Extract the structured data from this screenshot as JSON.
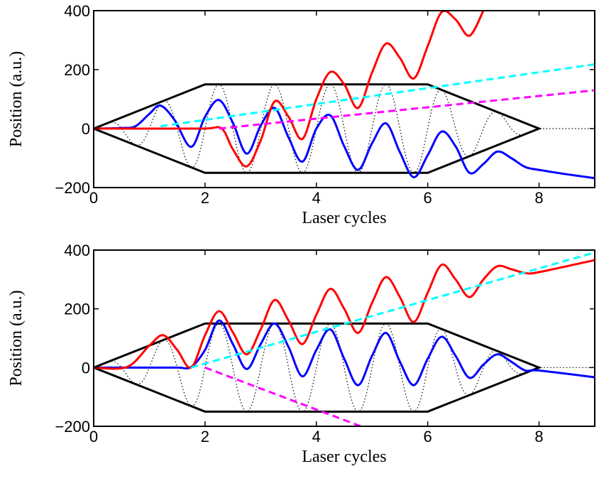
{
  "chart_data": [
    {
      "type": "line",
      "panel": "top",
      "xlabel": "Laser cycles",
      "ylabel": "Position (a.u.)",
      "xlim": [
        0,
        9
      ],
      "ylim": [
        -200,
        400
      ],
      "xticks": [
        0,
        2,
        4,
        6,
        8
      ],
      "xtick_labels": [
        "0",
        "2",
        "4",
        "6",
        "8"
      ],
      "yticks": [
        -200,
        0,
        200,
        400
      ],
      "ytick_labels": [
        "−200",
        "0",
        "200",
        "400"
      ],
      "grid": false,
      "legend": "none",
      "envelope": {
        "color": "#000000",
        "x": [
          0,
          2,
          6,
          8,
          6,
          2,
          0
        ],
        "y": [
          0,
          150,
          150,
          0,
          -150,
          -150,
          0
        ]
      },
      "field": {
        "color": "#000000",
        "style": "dotted",
        "amplitude_envelope": true,
        "zero_after": 8,
        "x_end": 9
      },
      "series": [
        {
          "color": "#0000ff",
          "style": "solid",
          "x": [
            0,
            0.5,
            0.75,
            1,
            1.2,
            1.45,
            1.75,
            2,
            2.25,
            2.5,
            2.75,
            3,
            3.25,
            3.5,
            3.75,
            4,
            4.25,
            4.5,
            4.75,
            5,
            5.25,
            5.5,
            5.75,
            6,
            6.25,
            6.5,
            6.75,
            7,
            7.25,
            7.5,
            7.75,
            8,
            8.5,
            9
          ],
          "y": [
            0,
            2,
            8,
            50,
            78,
            30,
            -62,
            40,
            97,
            20,
            -85,
            10,
            70,
            -30,
            -112,
            0,
            45,
            -60,
            -140,
            -50,
            18,
            -80,
            -165,
            -90,
            -10,
            -60,
            -150,
            -120,
            -78,
            -100,
            -130,
            -140,
            -155,
            -168
          ]
        },
        {
          "color": "#ff0000",
          "style": "solid",
          "x": [
            0,
            1,
            2,
            2.3,
            2.5,
            2.75,
            3,
            3.25,
            3.5,
            3.75,
            4,
            4.25,
            4.5,
            4.75,
            5,
            5.25,
            5.5,
            5.75,
            6,
            6.25,
            6.5,
            6.75,
            7
          ],
          "y": [
            0,
            0,
            0,
            0,
            -70,
            -128,
            -40,
            92,
            40,
            -35,
            100,
            192,
            150,
            70,
            190,
            288,
            240,
            170,
            280,
            395,
            370,
            315,
            400
          ]
        },
        {
          "color": "#00ffff",
          "style": "dashed",
          "x": [
            1.2,
            9
          ],
          "y": [
            8,
            218
          ]
        },
        {
          "color": "#ff00ff",
          "style": "dashed",
          "x": [
            2.25,
            9
          ],
          "y": [
            0,
            130
          ]
        }
      ]
    },
    {
      "type": "line",
      "panel": "bottom",
      "xlabel": "Laser cycles",
      "ylabel": "Position (a.u.)",
      "xlim": [
        0,
        9
      ],
      "ylim": [
        -200,
        400
      ],
      "xticks": [
        0,
        2,
        4,
        6,
        8
      ],
      "xtick_labels": [
        "0",
        "2",
        "4",
        "6",
        "8"
      ],
      "yticks": [
        -200,
        0,
        200,
        400
      ],
      "ytick_labels": [
        "−200",
        "0",
        "200",
        "400"
      ],
      "grid": false,
      "legend": "none",
      "envelope": {
        "color": "#000000",
        "x": [
          0,
          2,
          6,
          8,
          6,
          2,
          0
        ],
        "y": [
          0,
          150,
          150,
          0,
          -150,
          -150,
          0
        ]
      },
      "field": {
        "color": "#000000",
        "style": "dotted",
        "amplitude_envelope": true,
        "zero_after": 8,
        "x_end": 9
      },
      "series": [
        {
          "color": "#0000ff",
          "style": "solid",
          "x": [
            0,
            1,
            1.5,
            1.75,
            2,
            2.25,
            2.5,
            2.75,
            3,
            3.25,
            3.5,
            3.75,
            4,
            4.25,
            4.5,
            4.75,
            5,
            5.25,
            5.5,
            5.75,
            6,
            6.25,
            6.5,
            6.75,
            7,
            7.25,
            7.5,
            7.75,
            8,
            9
          ],
          "y": [
            0,
            0,
            0,
            2,
            60,
            160,
            80,
            -5,
            80,
            150,
            70,
            -30,
            60,
            130,
            30,
            -60,
            40,
            118,
            20,
            -60,
            30,
            105,
            40,
            -35,
            10,
            45,
            20,
            -10,
            -10,
            -33
          ]
        },
        {
          "color": "#ff0000",
          "style": "solid",
          "x": [
            0,
            0.6,
            1,
            1.25,
            1.5,
            1.75,
            2,
            2.25,
            2.5,
            2.75,
            3,
            3.25,
            3.5,
            3.75,
            4,
            4.25,
            4.5,
            4.75,
            5,
            5.25,
            5.5,
            5.75,
            6,
            6.25,
            6.5,
            6.75,
            7,
            7.25,
            7.5,
            7.75,
            8,
            9
          ],
          "y": [
            0,
            2,
            75,
            110,
            60,
            0,
            110,
            192,
            120,
            45,
            130,
            230,
            160,
            80,
            180,
            268,
            200,
            118,
            220,
            308,
            240,
            155,
            255,
            350,
            300,
            240,
            300,
            345,
            335,
            322,
            325,
            366
          ]
        },
        {
          "color": "#00ffff",
          "style": "dashed",
          "x": [
            1.75,
            9
          ],
          "y": [
            0,
            392
          ]
        },
        {
          "color": "#ff00ff",
          "style": "dashed",
          "x": [
            2,
            4.8
          ],
          "y": [
            0,
            -200
          ]
        }
      ]
    }
  ]
}
